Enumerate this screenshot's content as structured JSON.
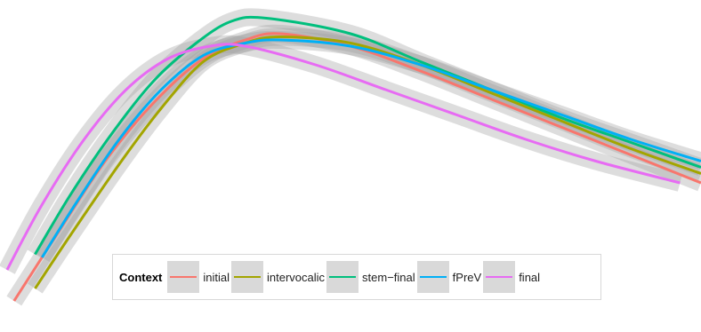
{
  "chart_data": {
    "type": "line",
    "xlim": [
      0,
      1
    ],
    "ylim": [
      0,
      1
    ],
    "grid": false,
    "legend_position": "bottom",
    "legend_title": "Context",
    "series": [
      {
        "name": "initial",
        "color": "#F8766D",
        "x": [
          0.02,
          0.08,
          0.15,
          0.22,
          0.29,
          0.35,
          0.4,
          0.5,
          0.6,
          0.7,
          0.8,
          0.9,
          1.0
        ],
        "y": [
          0.06,
          0.27,
          0.51,
          0.7,
          0.84,
          0.9,
          0.92,
          0.88,
          0.8,
          0.71,
          0.62,
          0.53,
          0.44
        ]
      },
      {
        "name": "intervocalic",
        "color": "#A3A500",
        "x": [
          0.05,
          0.1,
          0.17,
          0.23,
          0.29,
          0.35,
          0.4,
          0.5,
          0.6,
          0.7,
          0.8,
          0.9,
          1.0
        ],
        "y": [
          0.1,
          0.27,
          0.5,
          0.68,
          0.83,
          0.89,
          0.91,
          0.89,
          0.82,
          0.73,
          0.64,
          0.55,
          0.47
        ]
      },
      {
        "name": "stem−final",
        "color": "#00BF7D",
        "x": [
          0.05,
          0.1,
          0.16,
          0.22,
          0.28,
          0.33,
          0.38,
          0.5,
          0.6,
          0.7,
          0.8,
          0.9,
          1.0
        ],
        "y": [
          0.21,
          0.4,
          0.6,
          0.77,
          0.89,
          0.96,
          0.97,
          0.92,
          0.83,
          0.74,
          0.65,
          0.57,
          0.49
        ]
      },
      {
        "name": "fPreV",
        "color": "#00B0F6",
        "x": [
          0.06,
          0.11,
          0.17,
          0.23,
          0.29,
          0.35,
          0.4,
          0.5,
          0.6,
          0.7,
          0.8,
          0.9,
          1.0
        ],
        "y": [
          0.2,
          0.38,
          0.58,
          0.74,
          0.85,
          0.89,
          0.9,
          0.88,
          0.82,
          0.74,
          0.66,
          0.58,
          0.51
        ]
      },
      {
        "name": "final",
        "color": "#E76BF3",
        "x": [
          0.01,
          0.06,
          0.12,
          0.18,
          0.24,
          0.3,
          0.35,
          0.45,
          0.55,
          0.65,
          0.75,
          0.85,
          0.97
        ],
        "y": [
          0.16,
          0.37,
          0.58,
          0.74,
          0.84,
          0.88,
          0.88,
          0.82,
          0.74,
          0.66,
          0.58,
          0.51,
          0.44
        ]
      }
    ]
  }
}
